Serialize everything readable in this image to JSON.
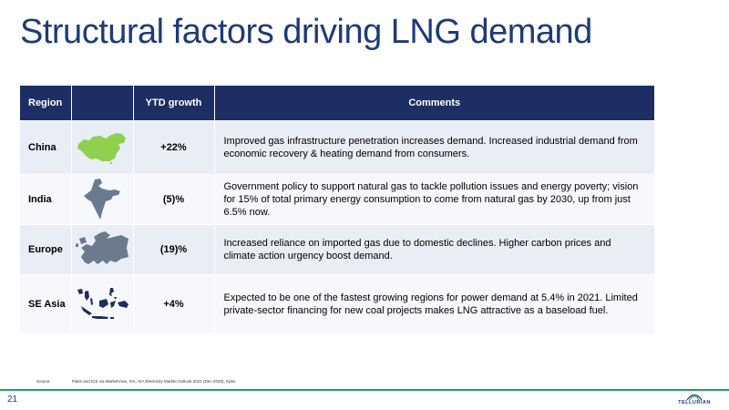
{
  "title": "Structural factors driving LNG demand",
  "table": {
    "headers": {
      "region": "Region",
      "map": "",
      "growth": "YTD growth",
      "comments": "Comments"
    },
    "rows": [
      {
        "region": "China",
        "map_icon": "china-map-icon",
        "growth": "+22%",
        "comment": "Improved gas infrastructure penetration increases demand. Increased industrial demand from economic recovery & heating demand from consumers."
      },
      {
        "region": "India",
        "map_icon": "india-map-icon",
        "growth": "(5)%",
        "comment": "Government policy to support natural gas to tackle pollution issues and energy poverty; vision for 15% of total primary energy consumption to come from natural gas by 2030, up from just 6.5% now."
      },
      {
        "region": "Europe",
        "map_icon": "europe-map-icon",
        "growth": "(19)%",
        "comment": "Increased reliance on imported gas due to domestic declines. Higher carbon prices and climate action urgency boost demand."
      },
      {
        "region": "SE Asia",
        "map_icon": "se-asia-map-icon",
        "growth": "+4%",
        "comment": "Expected to be one of the fastest growing regions for power demand at 5.4% in 2021. Limited private-sector financing for new coal projects makes LNG attractive as a baseload fuel."
      }
    ]
  },
  "source": {
    "label": "Source:",
    "text": "Platts and ICE via MarketView, SIA, IEA Electricity Market Outlook 2021 (Dec-2020), Kpler."
  },
  "page_number": "21",
  "logo_text": "TELLURIAN",
  "colors": {
    "title": "#1f3a78",
    "header_bg": "#1c2e63",
    "china_map": "#8fd14f",
    "other_maps": "#6b7a8f",
    "footer_line": "#22a15b"
  }
}
